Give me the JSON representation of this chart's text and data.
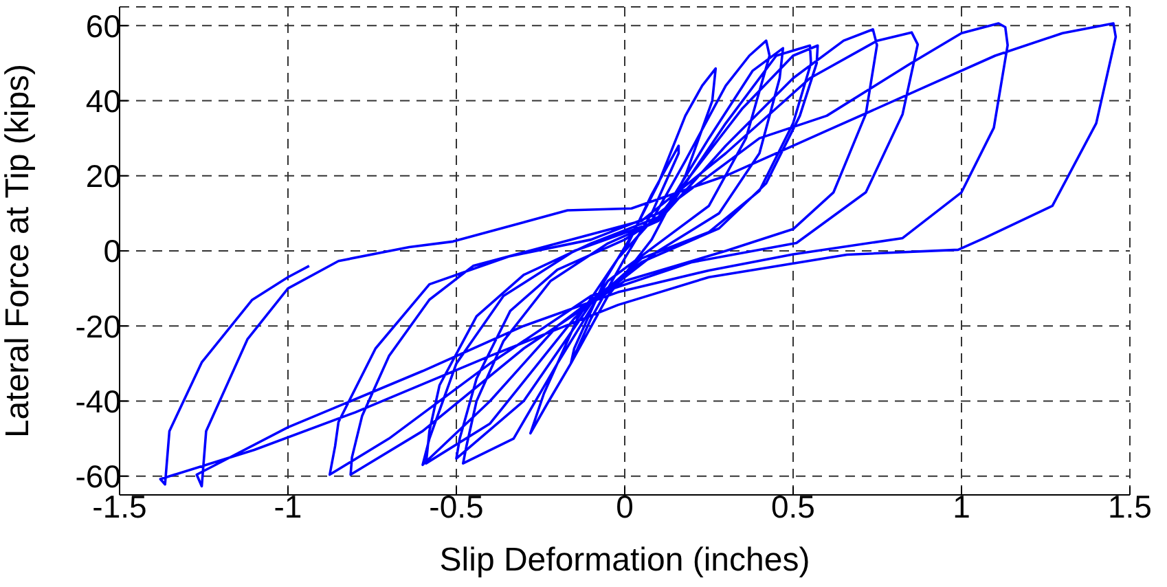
{
  "chart_data": {
    "type": "line",
    "xlabel": "Slip Deformation (inches)",
    "ylabel": "Lateral Force at Tip (kips)",
    "xlim": [
      -1.5,
      1.5
    ],
    "xticks": [
      -1.5,
      -1,
      -0.5,
      0,
      0.5,
      1,
      1.5
    ],
    "ylim": [
      -65,
      65
    ],
    "yticks": [
      -60,
      -40,
      -20,
      0,
      20,
      40,
      60
    ],
    "grid": true,
    "marker": "none",
    "line_style": "solid",
    "series": [
      {
        "color": "#0000ff",
        "x": [
          0,
          0.08,
          0.16,
          0.16,
          0.08,
          0,
          -0.1,
          -0.16,
          -0.15,
          -0.06,
          0.02,
          0.1,
          0.18,
          0.23,
          0.27,
          0.26,
          0.18,
          0.08,
          -0.05,
          -0.16,
          -0.23,
          -0.28,
          -0.24,
          -0.14,
          -0.02,
          0.08,
          0.18,
          0.3,
          0.37,
          0.42,
          0.43,
          0.36,
          0.25,
          0.1,
          -0.05,
          -0.2,
          -0.33,
          -0.48,
          -0.47,
          -0.44,
          -0.36,
          -0.22,
          -0.05,
          0.1,
          0.25,
          0.38,
          0.47,
          0.46,
          0.4,
          0.28,
          0.1,
          -0.1,
          -0.3,
          -0.5,
          -0.49,
          -0.44,
          -0.34,
          -0.2,
          0,
          0.12,
          0.3,
          0.45,
          0.55,
          0.553,
          0.5,
          0.4,
          0.25,
          0.05,
          -0.15,
          -0.4,
          -0.59,
          -0.58,
          -0.55,
          -0.44,
          -0.3,
          -0.1,
          0.1,
          0.35,
          0.5,
          0.573,
          0.57,
          0.52,
          0.42,
          0.28,
          0.05,
          -0.2,
          -0.4,
          -0.6,
          -0.58,
          -0.5,
          -0.36,
          -0.15,
          0.1,
          0.3,
          0.5,
          0.65,
          0.737,
          0.749,
          0.716,
          0.62,
          0.5,
          0.3,
          0,
          -0.3,
          -0.6,
          -0.814,
          -0.81,
          -0.78,
          -0.7,
          -0.58,
          -0.45,
          -0.2,
          0.05,
          0.3,
          0.55,
          0.75,
          0.852,
          0.87,
          0.825,
          0.716,
          0.51,
          0.2,
          -0.1,
          -0.4,
          -0.7,
          -0.876,
          -0.86,
          -0.85,
          -0.74,
          -0.58,
          -0.345,
          -0.1,
          0.1,
          0.4,
          0.6,
          0.85,
          1.0,
          1.11,
          1.13,
          1.137,
          1.096,
          1.0,
          0.825,
          0.5,
          0.25,
          -0.02,
          -0.3,
          -0.6,
          -1.0,
          -1.271,
          -1.256,
          -1.243,
          -1.12,
          -1.0,
          -0.85,
          -0.64,
          -0.51,
          -0.17,
          0.02,
          0.3,
          0.6,
          0.9,
          1.1,
          1.3,
          1.451,
          1.458,
          1.4,
          1.27,
          1.07,
          0.99,
          0.66,
          0.25,
          -0.02,
          -0.4,
          -0.8,
          -1.1,
          -1.379,
          -1.365,
          -1.352,
          -1.256,
          -1.107,
          -1.0,
          -0.937
        ],
        "values": [
          0,
          15,
          28,
          26,
          10,
          -2,
          -18,
          -30,
          -26,
          -8,
          4,
          18,
          36,
          44,
          48.6,
          40,
          20,
          3,
          -12,
          -30,
          -40.7,
          -48.6,
          -38,
          -18,
          -2,
          8,
          24,
          44,
          52,
          56,
          52,
          30,
          12,
          2,
          -8,
          -30,
          -50,
          -56.6,
          -52,
          -40,
          -24,
          -8,
          2,
          8,
          30,
          48,
          54,
          46,
          26,
          10,
          0,
          -14,
          -40,
          -55.3,
          -50,
          -34,
          -16,
          -5,
          3,
          10,
          34,
          52,
          54.7,
          50,
          34,
          16,
          5,
          -2,
          -18,
          -46,
          -56.6,
          -48,
          -35.8,
          -17.4,
          -6.4,
          2,
          9,
          38,
          52,
          54.7,
          50,
          36,
          18,
          6,
          -3,
          -20,
          -40,
          -57,
          -50,
          -30,
          -12,
          0,
          8,
          28,
          46,
          56,
          59,
          54.8,
          36.5,
          15.6,
          5.8,
          0,
          -8,
          -26,
          -48,
          -59.6,
          -55,
          -44,
          -28,
          -13,
          -4,
          2,
          8,
          26,
          46,
          56,
          58.2,
          55,
          36.4,
          15.6,
          2.1,
          -3,
          -12,
          -30,
          -50,
          -59.6,
          -52,
          -45.6,
          -26,
          -8.9,
          -1.5,
          3,
          10,
          30,
          36,
          50,
          58,
          60.6,
          59.6,
          54.8,
          32.8,
          15.6,
          3.4,
          -0.9,
          -5.2,
          -11,
          -20,
          -32,
          -47,
          -59.6,
          -62.7,
          -48,
          -23.5,
          -10,
          -2.7,
          1,
          2.5,
          10.8,
          11.3,
          20,
          32,
          44,
          52,
          58,
          60.6,
          57,
          34,
          12,
          3.5,
          0.3,
          -1,
          -7,
          -14.4,
          -28,
          -43,
          -53,
          -60.8,
          -62.2,
          -48,
          -29.7,
          -13.1,
          -7,
          -4
        ]
      }
    ]
  }
}
